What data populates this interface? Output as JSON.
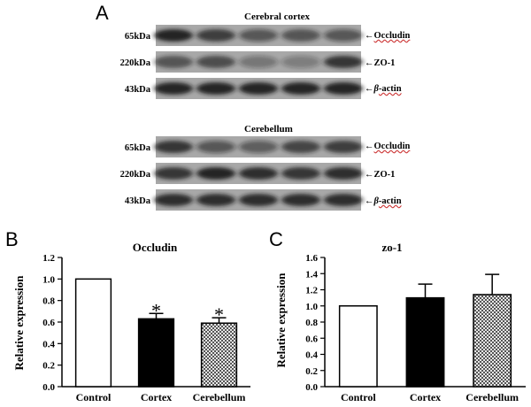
{
  "panel_a": {
    "letter": "A",
    "sections": [
      {
        "title": "Cerebral cortex",
        "rows": [
          {
            "mw": "65kDa",
            "protein": "Occludin",
            "intensity": [
              0.95,
              0.75,
              0.55,
              0.6,
              0.55
            ]
          },
          {
            "mw": "220kDa",
            "protein": "ZO-1",
            "intensity": [
              0.6,
              0.65,
              0.35,
              0.3,
              0.8
            ]
          },
          {
            "mw": "43kDa",
            "protein_prefix": "β",
            "protein": "-actin",
            "intensity": [
              0.9,
              0.9,
              0.9,
              0.9,
              0.9
            ]
          }
        ]
      },
      {
        "title": "Cerebellum",
        "rows": [
          {
            "mw": "65kDa",
            "protein": "Occludin",
            "intensity": [
              0.8,
              0.55,
              0.5,
              0.7,
              0.75
            ]
          },
          {
            "mw": "220kDa",
            "protein": "ZO-1",
            "intensity": [
              0.8,
              0.95,
              0.85,
              0.8,
              0.85
            ]
          },
          {
            "mw": "43kDa",
            "protein_prefix": "β",
            "protein": "-actin",
            "intensity": [
              0.85,
              0.85,
              0.85,
              0.85,
              0.85
            ]
          }
        ]
      }
    ]
  },
  "colors": {
    "bar_control": "#ffffff",
    "bar_cortex": "#000000",
    "bar_cerebellum": "#bdbdbd",
    "blot_bg": "#a8a8a8",
    "band": "#1a1a1a"
  },
  "chart_data": [
    {
      "type": "bar",
      "panel_letter": "B",
      "title": "Occludin",
      "ylabel": "Relative expression",
      "xlabel": "",
      "categories": [
        "Control",
        "Cortex",
        "Cerebellum"
      ],
      "values": [
        1.0,
        0.63,
        0.59
      ],
      "errors": [
        0,
        0.05,
        0.05
      ],
      "significance": [
        "",
        "*",
        "*"
      ],
      "ylim": [
        0,
        1.2
      ],
      "yticks": [
        "0.0",
        "0.2",
        "0.4",
        "0.6",
        "0.8",
        "1.0",
        "1.2"
      ]
    },
    {
      "type": "bar",
      "panel_letter": "C",
      "title": "zo-1",
      "ylabel": "Relative expression",
      "xlabel": "",
      "categories": [
        "Control",
        "Cortex",
        "Cerebellum"
      ],
      "values": [
        1.0,
        1.1,
        1.14
      ],
      "errors": [
        0,
        0.17,
        0.25
      ],
      "significance": [
        "",
        "",
        ""
      ],
      "ylim": [
        0,
        1.6
      ],
      "yticks": [
        "0.0",
        "0.2",
        "0.4",
        "0.6",
        "0.8",
        "1.0",
        "1.2",
        "1.4",
        "1.6"
      ]
    }
  ]
}
